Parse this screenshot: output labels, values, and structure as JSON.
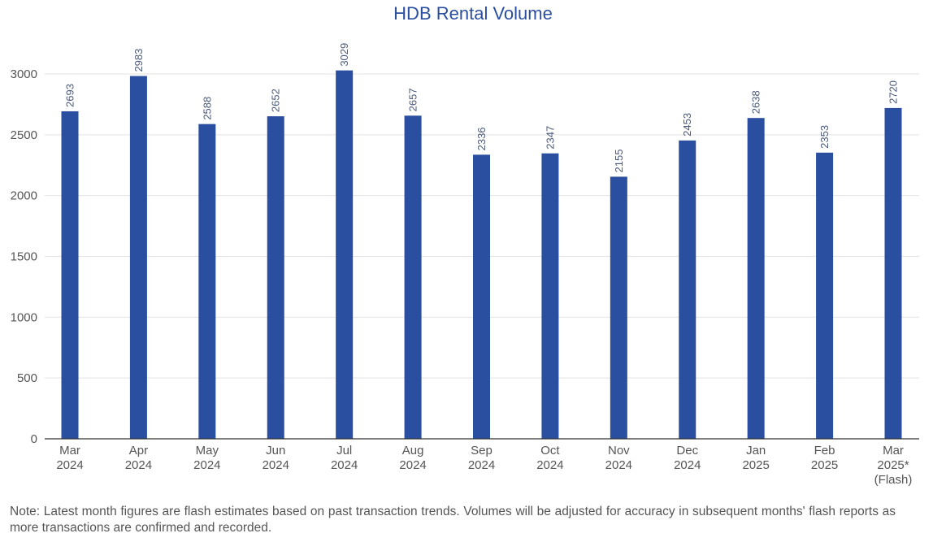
{
  "chart_data": {
    "type": "bar",
    "title": "HDB Rental Volume",
    "categories": [
      [
        "Mar",
        "2024"
      ],
      [
        "Apr",
        "2024"
      ],
      [
        "May",
        "2024"
      ],
      [
        "Jun",
        "2024"
      ],
      [
        "Jul",
        "2024"
      ],
      [
        "Aug",
        "2024"
      ],
      [
        "Sep",
        "2024"
      ],
      [
        "Oct",
        "2024"
      ],
      [
        "Nov",
        "2024"
      ],
      [
        "Dec",
        "2024"
      ],
      [
        "Jan",
        "2025"
      ],
      [
        "Feb",
        "2025"
      ],
      [
        "Mar",
        "2025*",
        "(Flash)"
      ]
    ],
    "values": [
      2693,
      2983,
      2588,
      2652,
      3029,
      2657,
      2336,
      2347,
      2155,
      2453,
      2638,
      2353,
      2720
    ],
    "ylim": [
      0,
      3200
    ],
    "yticks": [
      0,
      500,
      1000,
      1500,
      2000,
      2500,
      3000
    ],
    "grid": true,
    "bar_color": "#2a4fa0",
    "xlabel": "",
    "ylabel": ""
  },
  "note": "Note: Latest month figures are flash estimates based on past transaction trends. Volumes will be adjusted for accuracy in subsequent months' flash reports as more transactions are confirmed and recorded."
}
